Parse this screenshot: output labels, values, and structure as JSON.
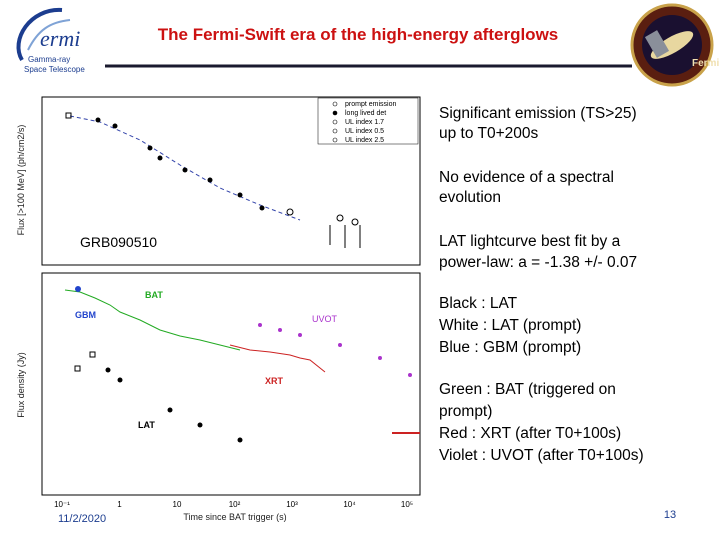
{
  "header": {
    "title": "The Fermi-Swift era of the high-energy afterglows",
    "logo": {
      "name": "ermi",
      "line1": "Gamma-ray",
      "line2": "Space Telescope"
    },
    "patch": "Fermi"
  },
  "figure": {
    "grb": "GRB090510",
    "top_y_label": "Flux [>100 MeV] (ph/cm2/s)",
    "bottom_y_label": "Flux density (Jy)",
    "x_label": "Time since BAT trigger (s)",
    "legend": [
      "prompt emission",
      "long lived det",
      "UL index 1.7",
      "UL index 0.5",
      "UL index 2.5"
    ],
    "labels": {
      "bat": "BAT",
      "gbm": "GBM",
      "uvot": "UVOT",
      "xrt": "XRT",
      "lat": "LAT"
    },
    "x_ticks": [
      "10⁻¹",
      "1",
      "10",
      "10²",
      "10³",
      "10⁴",
      "10⁵"
    ]
  },
  "notes": [
    {
      "lines": [
        "Significant emission  (TS>25)",
        "up to T0+200s"
      ]
    },
    {
      "lines": [
        "No evidence of a spectral",
        "evolution"
      ]
    },
    {
      "lines": [
        "LAT lightcurve  best fit by a",
        "power-law: a = -1.38 +/- 0.07"
      ]
    },
    {
      "lines": [
        "Black : LAT",
        "White : LAT (prompt)",
        "Blue : GBM (prompt)"
      ]
    },
    {
      "lines": [
        "Green : BAT (triggered on",
        "prompt)",
        "Red : XRT (after T0+100s)",
        "Violet : UVOT (after T0+100s)"
      ]
    }
  ],
  "footer": {
    "date": "11/2/2020",
    "page": "13"
  }
}
